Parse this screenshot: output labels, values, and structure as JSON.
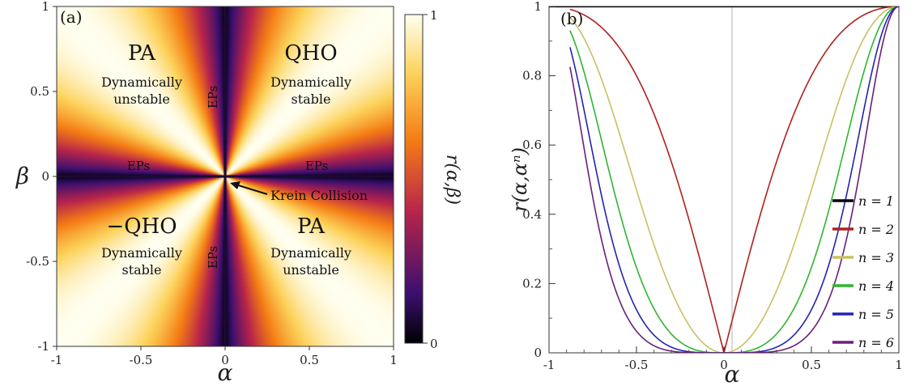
{
  "chart_data": [
    {
      "type": "heatmap",
      "panel_label": "(a)",
      "xlabel": "α",
      "ylabel": "β",
      "xlim": [
        -1,
        1
      ],
      "ylim": [
        -1,
        1
      ],
      "xticks": [
        "-1",
        "-0.5",
        "0",
        "0.5",
        "1"
      ],
      "yticks": [
        "-1",
        "-0.5",
        "0",
        "0.5",
        "1"
      ],
      "colorbar": {
        "label": "r(α,β)",
        "min": 0,
        "max": 1,
        "ticks": [
          "0",
          "1"
        ],
        "colors": [
          "#000000",
          "#3b0f70",
          "#b8244b",
          "#f57d15",
          "#fcd25a",
          "#fffff0"
        ]
      },
      "regions": [
        {
          "name": "PA",
          "stability": "Dynamically unstable",
          "quadrant": "top-left"
        },
        {
          "name": "QHO",
          "stability": "Dynamically stable",
          "quadrant": "top-right"
        },
        {
          "name": "−QHO",
          "stability": "Dynamically stable",
          "quadrant": "bottom-left"
        },
        {
          "name": "PA",
          "stability": "Dynamically unstable",
          "quadrant": "bottom-right"
        }
      ],
      "annotations": {
        "ep": "EPs",
        "krein": "Krein Collision"
      }
    },
    {
      "type": "line",
      "panel_label": "(b)",
      "xlabel": "α",
      "ylabel": "r(α,αⁿ)",
      "xlim": [
        -1,
        1
      ],
      "ylim": [
        0,
        1
      ],
      "xticks": [
        "-1",
        "-0.5",
        "0",
        "0.5",
        "1"
      ],
      "yticks": [
        "0",
        "0.2",
        "0.4",
        "0.6",
        "0.8",
        "1"
      ],
      "x_start": -0.88,
      "legend_position": "bottom-right",
      "series": [
        {
          "name": "n = 1",
          "n": 1,
          "color": "#000000"
        },
        {
          "name": "n = 2",
          "n": 2,
          "color": "#b0201e"
        },
        {
          "name": "n = 3",
          "n": 3,
          "color": "#c8c060"
        },
        {
          "name": "n = 4",
          "n": 4,
          "color": "#2fb52f"
        },
        {
          "name": "n = 5",
          "n": 5,
          "color": "#2323b0"
        },
        {
          "name": "n = 6",
          "n": 6,
          "color": "#6b1f78"
        }
      ]
    }
  ]
}
